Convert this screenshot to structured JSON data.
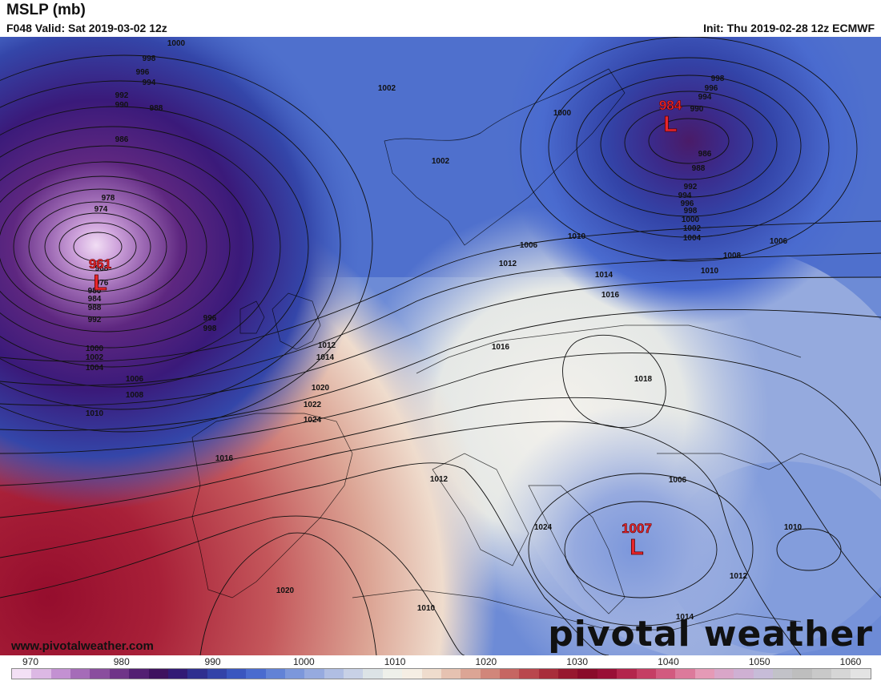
{
  "header": {
    "title": "MSLP (mb)",
    "valid": "F048 Valid: Sat 2019-03-02 12z",
    "init": "Init: Thu 2019-02-28 12z ECMWF"
  },
  "footer": {
    "website": "www.pivotalweather.com",
    "brand": "pivotal weather"
  },
  "lows": [
    {
      "value": "961",
      "symbol": "L"
    },
    {
      "value": "984",
      "symbol": "L"
    },
    {
      "value": "1007",
      "symbol": "L"
    }
  ],
  "contour_labels": [
    "1000",
    "998",
    "996",
    "994",
    "992",
    "990",
    "988",
    "986",
    "978",
    "974",
    "968",
    "976",
    "980",
    "984",
    "988",
    "992",
    "996",
    "998",
    "1000",
    "1002",
    "1004",
    "1006",
    "1008",
    "1010",
    "1002",
    "1002",
    "1000",
    "998",
    "996",
    "994",
    "990",
    "986",
    "988",
    "992",
    "994",
    "996",
    "998",
    "1000",
    "1002",
    "1004",
    "1006",
    "1008",
    "1010",
    "1006",
    "1012",
    "1014",
    "1016",
    "1016",
    "1018",
    "1020",
    "1022",
    "1024",
    "1016",
    "1012",
    "1024",
    "1020",
    "1010",
    "1006",
    "1010",
    "1012",
    "1014",
    "1012",
    "1014",
    "1010"
  ],
  "colorbar": {
    "ticks": [
      "970",
      "980",
      "990",
      "1000",
      "1010",
      "1020",
      "1030",
      "1040",
      "1050",
      "1060"
    ],
    "colors": [
      "#f3e0f5",
      "#dcb8e4",
      "#c391d2",
      "#a56cb8",
      "#8a4e9e",
      "#6f3488",
      "#531f73",
      "#3e125f",
      "#321a75",
      "#2f2f8f",
      "#3343a8",
      "#3a56bf",
      "#4a6bcf",
      "#6282d6",
      "#7c97db",
      "#96aadf",
      "#b0bee3",
      "#c8d1e6",
      "#dce3e6",
      "#eef0ea",
      "#f5eee4",
      "#efdccd",
      "#e6c2b1",
      "#dca595",
      "#d1867a",
      "#c66662",
      "#b9474d",
      "#a82d3b",
      "#97182f",
      "#8a0b2a",
      "#990f36",
      "#b3254c",
      "#c53e64",
      "#d25a7f",
      "#dc7a9b",
      "#e59ab6",
      "#d9a6c8",
      "#cfb0d3",
      "#c7bcd8",
      "#c2c2c8",
      "#bebebe",
      "#c9c9c9",
      "#d6d6d6",
      "#e3e3e3"
    ]
  }
}
